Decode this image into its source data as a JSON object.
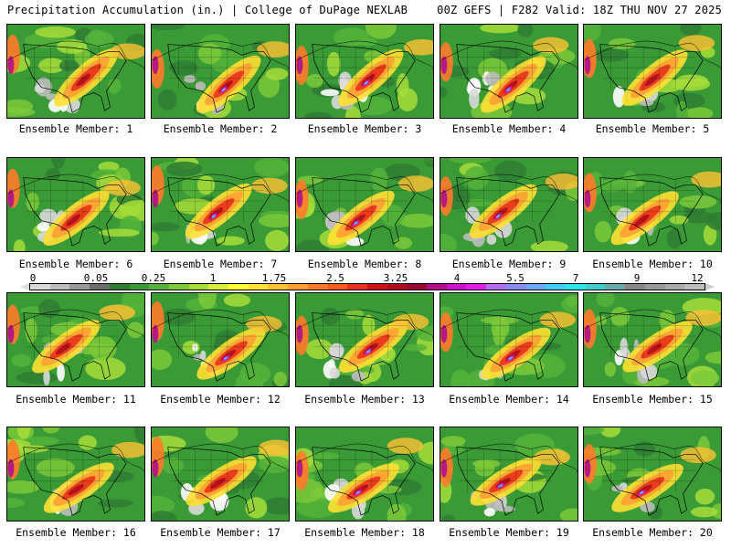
{
  "header": {
    "title": "Precipitation Accumulation (in.) | College of DuPage NEXLAB",
    "valid": "00Z GEFS | F282 Valid: 18Z THU NOV 27 2025"
  },
  "colorbar": {
    "labels": [
      "0",
      "0.05",
      "0.25",
      "1",
      "1.75",
      "2.5",
      "3.25",
      "4",
      "5.5",
      "7",
      "9",
      "12"
    ],
    "colors": [
      "#d9d9d9",
      "#bdbdbd",
      "#9a9a9a",
      "#6e6e6e",
      "#2f7d32",
      "#3a9a36",
      "#54b339",
      "#7cc93a",
      "#a6dd3a",
      "#d8ee3a",
      "#ffff33",
      "#ffe033",
      "#ffc033",
      "#ffa033",
      "#ff7a2a",
      "#ff5a1e",
      "#e8321a",
      "#cc1414",
      "#b00d1e",
      "#990a33",
      "#b0108c",
      "#cc14cc",
      "#e020e8",
      "#b36ef5",
      "#8a8cf5",
      "#6aaaff",
      "#44ccff",
      "#2ee6ee",
      "#44cccc",
      "#66aaaa",
      "#888888",
      "#9a9a9a",
      "#aaaaaa",
      "#bdbdbd"
    ]
  },
  "members": [
    {
      "label": "Ensemble Member: 1"
    },
    {
      "label": "Ensemble Member: 2"
    },
    {
      "label": "Ensemble Member: 3"
    },
    {
      "label": "Ensemble Member: 4"
    },
    {
      "label": "Ensemble Member: 5"
    },
    {
      "label": "Ensemble Member: 6"
    },
    {
      "label": "Ensemble Member: 7"
    },
    {
      "label": "Ensemble Member: 8"
    },
    {
      "label": "Ensemble Member: 9"
    },
    {
      "label": "Ensemble Member: 10"
    },
    {
      "label": "Ensemble Member: 11"
    },
    {
      "label": "Ensemble Member: 12"
    },
    {
      "label": "Ensemble Member: 13"
    },
    {
      "label": "Ensemble Member: 14"
    },
    {
      "label": "Ensemble Member: 15"
    },
    {
      "label": "Ensemble Member: 16"
    },
    {
      "label": "Ensemble Member: 17"
    },
    {
      "label": "Ensemble Member: 18"
    },
    {
      "label": "Ensemble Member: 19"
    },
    {
      "label": "Ensemble Member: 20"
    }
  ]
}
